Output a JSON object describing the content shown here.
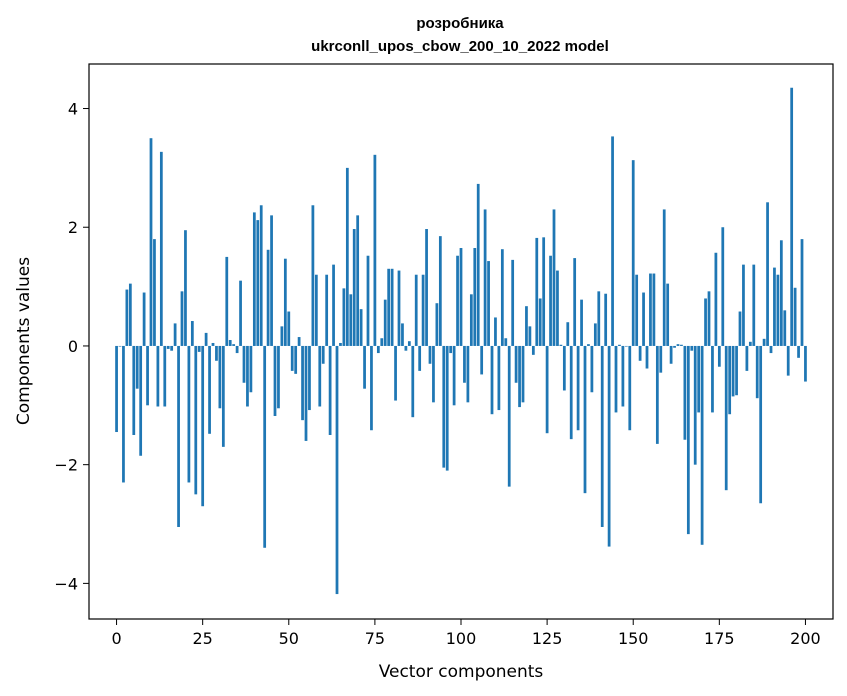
{
  "chart_data": {
    "type": "bar",
    "title": "розробника",
    "subtitle": "ukrconll_upos_cbow_200_10_2022 model",
    "xlabel": "Vector components",
    "ylabel": "Components values",
    "xlim": [
      -8,
      208
    ],
    "ylim": [
      -4.6,
      4.75
    ],
    "xticks": [
      0,
      25,
      50,
      75,
      100,
      125,
      150,
      175,
      200
    ],
    "yticks": [
      -4,
      -2,
      0,
      2,
      4
    ],
    "xtick_labels": [
      "0",
      "25",
      "50",
      "75",
      "100",
      "125",
      "150",
      "175",
      "200"
    ],
    "ytick_labels": [
      "−4",
      "−2",
      "0",
      "2",
      "4"
    ],
    "grid": false,
    "bar_color": "#1f77b4",
    "values": [
      -1.45,
      0.0,
      -2.3,
      0.95,
      1.05,
      -1.5,
      -0.72,
      -1.85,
      0.9,
      -1.0,
      3.5,
      1.8,
      -1.02,
      3.27,
      -1.02,
      -0.05,
      -0.08,
      0.38,
      -3.05,
      0.92,
      1.95,
      -2.3,
      0.42,
      -2.5,
      -0.1,
      -2.7,
      0.22,
      -1.48,
      0.05,
      -0.25,
      -1.05,
      -1.7,
      1.5,
      0.1,
      0.03,
      -0.12,
      1.1,
      -0.62,
      -1.02,
      -0.78,
      2.25,
      2.12,
      2.37,
      -3.4,
      1.62,
      2.2,
      -1.18,
      -1.05,
      0.33,
      1.47,
      0.58,
      -0.42,
      -0.47,
      0.15,
      -1.25,
      -1.6,
      -1.08,
      2.37,
      1.2,
      -1.02,
      -0.3,
      1.2,
      -1.5,
      1.37,
      -4.18,
      0.05,
      0.97,
      3.0,
      0.87,
      1.97,
      2.2,
      0.62,
      -0.72,
      1.52,
      -1.42,
      3.22,
      -0.12,
      0.13,
      0.78,
      1.3,
      1.3,
      -0.92,
      1.27,
      0.38,
      -0.08,
      0.08,
      -1.2,
      1.2,
      -0.42,
      1.2,
      1.97,
      -0.3,
      -0.95,
      0.72,
      1.85,
      -2.05,
      -2.1,
      -0.12,
      -1.0,
      1.52,
      1.65,
      -0.62,
      -0.95,
      0.87,
      1.65,
      2.73,
      -0.48,
      2.3,
      1.43,
      -1.15,
      0.48,
      -1.08,
      1.63,
      0.13,
      -2.37,
      1.45,
      -0.62,
      -1.03,
      -0.95,
      0.67,
      0.33,
      -0.15,
      1.82,
      0.8,
      1.83,
      -1.47,
      1.52,
      2.3,
      1.27,
      0.02,
      -0.75,
      0.4,
      -1.57,
      1.48,
      -1.42,
      0.78,
      -2.48,
      0.03,
      -0.78,
      0.38,
      0.92,
      -3.05,
      0.88,
      -3.38,
      3.53,
      -1.12,
      0.02,
      -1.02,
      0.0,
      -1.42,
      3.13,
      1.2,
      -0.25,
      0.9,
      -0.38,
      1.22,
      1.22,
      -1.65,
      -0.45,
      2.3,
      1.05,
      -0.3,
      -0.03,
      0.03,
      0.02,
      -1.58,
      -3.17,
      -0.08,
      -2.0,
      -1.12,
      -3.35,
      0.8,
      0.92,
      -1.12,
      1.57,
      -0.35,
      2.0,
      -2.43,
      -1.15,
      -0.85,
      -0.83,
      0.58,
      1.37,
      -0.42,
      0.07,
      1.37,
      -0.88,
      -2.65,
      0.12,
      2.42,
      -0.12,
      1.32,
      1.2,
      1.78,
      0.6,
      -0.5,
      4.35,
      0.98,
      -0.2,
      1.8,
      -0.6
    ]
  }
}
